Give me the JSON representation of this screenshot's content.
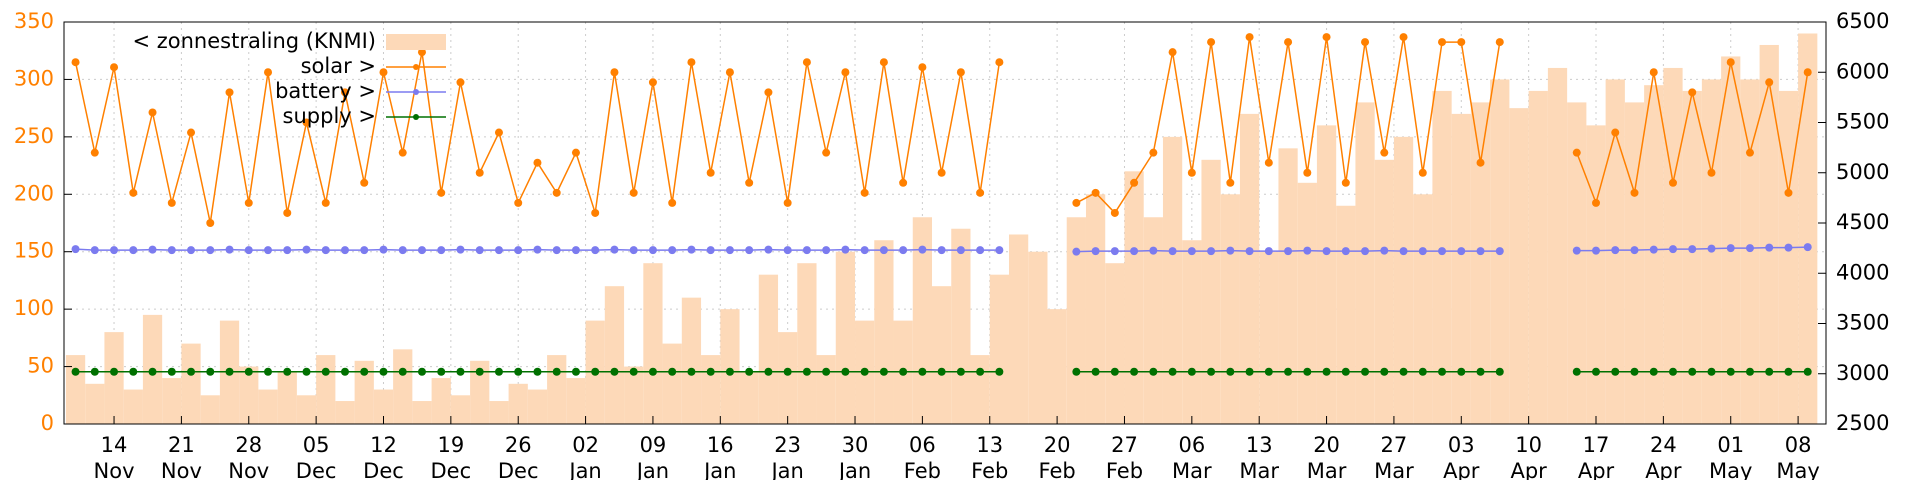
{
  "chart_data": {
    "type": "line",
    "x": [
      -4,
      -2,
      0,
      2,
      4,
      6,
      8,
      10,
      12,
      14,
      16,
      18,
      20,
      22,
      24,
      26,
      28,
      30,
      32,
      34,
      36,
      38,
      40,
      42,
      44,
      46,
      48,
      50,
      52,
      54,
      56,
      58,
      60,
      62,
      64,
      66,
      68,
      70,
      72,
      74,
      76,
      78,
      80,
      82,
      84,
      86,
      88,
      90,
      92,
      94,
      96,
      98,
      100,
      102,
      104,
      106,
      108,
      110,
      112,
      114,
      116,
      118,
      120,
      122,
      124,
      126,
      128,
      130,
      132,
      134,
      136,
      138,
      140,
      142,
      144,
      146,
      148,
      150,
      152,
      154,
      156,
      158,
      160,
      162,
      164,
      166,
      168,
      170,
      172,
      174,
      176
    ],
    "series": [
      {
        "name": "< zonnestraling (KNMI)",
        "color": "#fdd9b8",
        "axis": "y",
        "style": "bars",
        "values": [
          60,
          35,
          80,
          30,
          95,
          40,
          70,
          25,
          90,
          50,
          30,
          45,
          25,
          60,
          20,
          55,
          30,
          65,
          20,
          40,
          25,
          55,
          20,
          35,
          30,
          60,
          40,
          90,
          120,
          50,
          140,
          70,
          110,
          60,
          100,
          45,
          130,
          80,
          140,
          60,
          150,
          90,
          160,
          90,
          180,
          120,
          170,
          60,
          130,
          165,
          150,
          100,
          180,
          200,
          140,
          220,
          180,
          250,
          160,
          230,
          200,
          270,
          150,
          240,
          210,
          260,
          190,
          280,
          230,
          250,
          200,
          290,
          270,
          280,
          300,
          275,
          290,
          310,
          280,
          260,
          300,
          280,
          295,
          310,
          290,
          300,
          320,
          300,
          330,
          290,
          340
        ]
      },
      {
        "name": "solar >",
        "color": "#ff8000",
        "axis": "y2",
        "style": "linespoints",
        "values": [
          6100,
          5200,
          6050,
          4800,
          5600,
          4700,
          5400,
          4500,
          5800,
          4700,
          6000,
          4600,
          5500,
          4700,
          5800,
          4900,
          6000,
          5200,
          6200,
          4800,
          5900,
          5000,
          5400,
          4700,
          5100,
          4800,
          5200,
          4600,
          6000,
          4800,
          5900,
          4700,
          6100,
          5000,
          6000,
          4900,
          5800,
          4700,
          6100,
          5200,
          6000,
          4800,
          6100,
          4900,
          6050,
          5000,
          6000,
          4800,
          6100,
          null,
          null,
          null,
          4700,
          4800,
          4600,
          4900,
          5200,
          6200,
          5000,
          6300,
          4900,
          6350,
          5100,
          6300,
          5000,
          6350,
          4900,
          6300,
          5200,
          6350,
          5000,
          6300,
          6300,
          5100,
          6300,
          null,
          null,
          null,
          5200,
          4700,
          5400,
          4800,
          6000,
          4900,
          5800,
          5000,
          6100,
          5200,
          5900,
          4800,
          6000
        ]
      },
      {
        "name": "battery >",
        "color": "#7b7bef",
        "axis": "y2",
        "style": "linespoints",
        "values": [
          4240,
          4230,
          4230,
          4230,
          4235,
          4230,
          4230,
          4230,
          4235,
          4230,
          4230,
          4230,
          4235,
          4230,
          4230,
          4230,
          4235,
          4230,
          4230,
          4230,
          4235,
          4230,
          4230,
          4230,
          4235,
          4230,
          4230,
          4230,
          4235,
          4230,
          4230,
          4230,
          4235,
          4230,
          4230,
          4230,
          4235,
          4230,
          4230,
          4230,
          4235,
          4230,
          4230,
          4230,
          4235,
          4230,
          4230,
          4230,
          4230,
          null,
          null,
          null,
          4215,
          4220,
          4220,
          4220,
          4225,
          4220,
          4220,
          4220,
          4225,
          4220,
          4220,
          4220,
          4225,
          4220,
          4220,
          4220,
          4225,
          4220,
          4220,
          4220,
          4220,
          4220,
          4220,
          null,
          null,
          null,
          4225,
          4225,
          4230,
          4230,
          4235,
          4240,
          4240,
          4245,
          4250,
          4250,
          4255,
          4255,
          4260
        ]
      },
      {
        "name": "supply >",
        "color": "#007000",
        "axis": "y2",
        "style": "linespoints",
        "values": [
          3020,
          3020,
          3020,
          3020,
          3020,
          3020,
          3020,
          3020,
          3020,
          3020,
          3020,
          3020,
          3020,
          3020,
          3020,
          3020,
          3020,
          3020,
          3020,
          3020,
          3020,
          3020,
          3020,
          3020,
          3020,
          3020,
          3020,
          3020,
          3020,
          3020,
          3020,
          3020,
          3020,
          3020,
          3020,
          3020,
          3020,
          3020,
          3020,
          3020,
          3020,
          3020,
          3020,
          3020,
          3020,
          3020,
          3020,
          3020,
          3020,
          null,
          null,
          null,
          3020,
          3020,
          3020,
          3020,
          3020,
          3020,
          3020,
          3020,
          3020,
          3020,
          3020,
          3020,
          3020,
          3020,
          3020,
          3020,
          3020,
          3020,
          3020,
          3020,
          3020,
          3020,
          3020,
          null,
          null,
          null,
          3020,
          3020,
          3020,
          3020,
          3020,
          3020,
          3020,
          3020,
          3020,
          3020,
          3020,
          3020,
          3020
        ]
      }
    ],
    "xlim": [
      -5.2,
      177.9
    ],
    "xticks": [
      {
        "value": 0,
        "label": [
          "14",
          "Nov"
        ]
      },
      {
        "value": 7,
        "label": [
          "21",
          "Nov"
        ]
      },
      {
        "value": 14,
        "label": [
          "28",
          "Nov"
        ]
      },
      {
        "value": 21,
        "label": [
          "05",
          "Dec"
        ]
      },
      {
        "value": 28,
        "label": [
          "12",
          "Dec"
        ]
      },
      {
        "value": 35,
        "label": [
          "19",
          "Dec"
        ]
      },
      {
        "value": 42,
        "label": [
          "26",
          "Dec"
        ]
      },
      {
        "value": 49,
        "label": [
          "02",
          "Jan"
        ]
      },
      {
        "value": 56,
        "label": [
          "09",
          "Jan"
        ]
      },
      {
        "value": 63,
        "label": [
          "16",
          "Jan"
        ]
      },
      {
        "value": 70,
        "label": [
          "23",
          "Jan"
        ]
      },
      {
        "value": 77,
        "label": [
          "30",
          "Jan"
        ]
      },
      {
        "value": 84,
        "label": [
          "06",
          "Feb"
        ]
      },
      {
        "value": 91,
        "label": [
          "13",
          "Feb"
        ]
      },
      {
        "value": 98,
        "label": [
          "20",
          "Feb"
        ]
      },
      {
        "value": 105,
        "label": [
          "27",
          "Feb"
        ]
      },
      {
        "value": 112,
        "label": [
          "06",
          "Mar"
        ]
      },
      {
        "value": 119,
        "label": [
          "13",
          "Mar"
        ]
      },
      {
        "value": 126,
        "label": [
          "20",
          "Mar"
        ]
      },
      {
        "value": 133,
        "label": [
          "27",
          "Mar"
        ]
      },
      {
        "value": 140,
        "label": [
          "03",
          "Apr"
        ]
      },
      {
        "value": 147,
        "label": [
          "10",
          "Apr"
        ]
      },
      {
        "value": 154,
        "label": [
          "17",
          "Apr"
        ]
      },
      {
        "value": 161,
        "label": [
          "24",
          "Apr"
        ]
      },
      {
        "value": 168,
        "label": [
          "01",
          "May"
        ]
      },
      {
        "value": 175,
        "label": [
          "08",
          "May"
        ]
      }
    ],
    "ylim": [
      0,
      350
    ],
    "yticks": [
      0,
      50,
      100,
      150,
      200,
      250,
      300,
      350
    ],
    "ycolor": "#ff8000",
    "y2lim": [
      2500,
      6500
    ],
    "y2ticks": [
      2500,
      3000,
      3500,
      4000,
      4500,
      5000,
      5500,
      6000,
      6500
    ],
    "grid": true,
    "legend": "top-left"
  }
}
